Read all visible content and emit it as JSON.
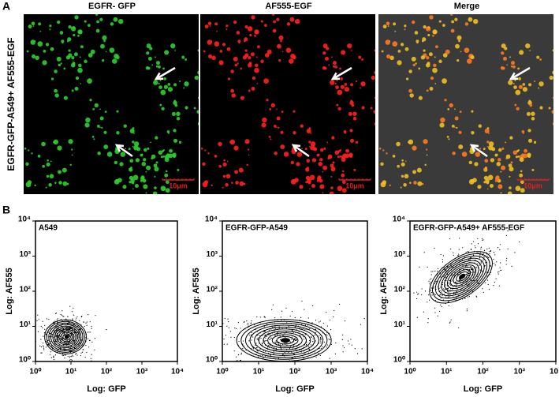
{
  "figure": {
    "panel_a": {
      "label": "A",
      "row_label": "EGFR-GFP-A549+ AF555-EGF",
      "images": [
        {
          "title": "EGFR- GFP",
          "scale_bar": "10μm"
        },
        {
          "title": "AF555-EGF",
          "scale_bar": "10μm"
        },
        {
          "title": "Merge",
          "scale_bar": "10μm"
        }
      ]
    },
    "panel_b": {
      "label": "B"
    }
  },
  "chart_data": [
    {
      "type": "contour",
      "title": "A549",
      "x_label": "Log: GFP",
      "y_label": "Log: AF555",
      "log_x": true,
      "log_y": true,
      "xlim": [
        1,
        10000
      ],
      "ylim": [
        1,
        10000
      ],
      "xticks": [
        {
          "value": 1,
          "label": "10⁰"
        },
        {
          "value": 10,
          "label": "10¹"
        },
        {
          "value": 100,
          "label": "10²"
        },
        {
          "value": 1000,
          "label": "10³"
        },
        {
          "value": 10000,
          "label": "10⁴"
        }
      ],
      "yticks": [
        {
          "value": 1,
          "label": "10⁰"
        },
        {
          "value": 10,
          "label": "10¹"
        },
        {
          "value": 100,
          "label": "10²"
        },
        {
          "value": 1000,
          "label": "10³"
        },
        {
          "value": 10000,
          "label": "10⁴"
        }
      ],
      "peak_x": 7,
      "peak_y": 5
    },
    {
      "type": "contour",
      "title": "EGFR-GFP-A549",
      "x_label": "Log: GFP",
      "y_label": "Log: AF555",
      "log_x": true,
      "log_y": true,
      "xlim": [
        1,
        10000
      ],
      "ylim": [
        1,
        10000
      ],
      "xticks": [
        {
          "value": 1,
          "label": "10⁰"
        },
        {
          "value": 10,
          "label": "10¹"
        },
        {
          "value": 100,
          "label": "10²"
        },
        {
          "value": 1000,
          "label": "10³"
        },
        {
          "value": 10000,
          "label": "10⁴"
        }
      ],
      "yticks": [
        {
          "value": 1,
          "label": "10⁰"
        },
        {
          "value": 10,
          "label": "10¹"
        },
        {
          "value": 100,
          "label": "10²"
        },
        {
          "value": 1000,
          "label": "10³"
        },
        {
          "value": 10000,
          "label": "10⁴"
        }
      ],
      "peak_x": 50,
      "peak_y": 4
    },
    {
      "type": "contour",
      "title": "EGFR-GFP-A549+ AF555-EGF",
      "x_label": "Log: GFP",
      "y_label": "Log: AF555",
      "log_x": true,
      "log_y": true,
      "xlim": [
        1,
        10000
      ],
      "ylim": [
        1,
        10000
      ],
      "xticks": [
        {
          "value": 1,
          "label": "10⁰"
        },
        {
          "value": 10,
          "label": "10¹"
        },
        {
          "value": 100,
          "label": "10²"
        },
        {
          "value": 1000,
          "label": "10³"
        },
        {
          "value": 10000,
          "label": "10⁴"
        }
      ],
      "yticks": [
        {
          "value": 1,
          "label": "10⁰"
        },
        {
          "value": 10,
          "label": "10¹"
        },
        {
          "value": 100,
          "label": "10²"
        },
        {
          "value": 1000,
          "label": "10³"
        },
        {
          "value": 10000,
          "label": "10⁴"
        }
      ],
      "peak_x": 25,
      "peak_y": 250
    }
  ]
}
